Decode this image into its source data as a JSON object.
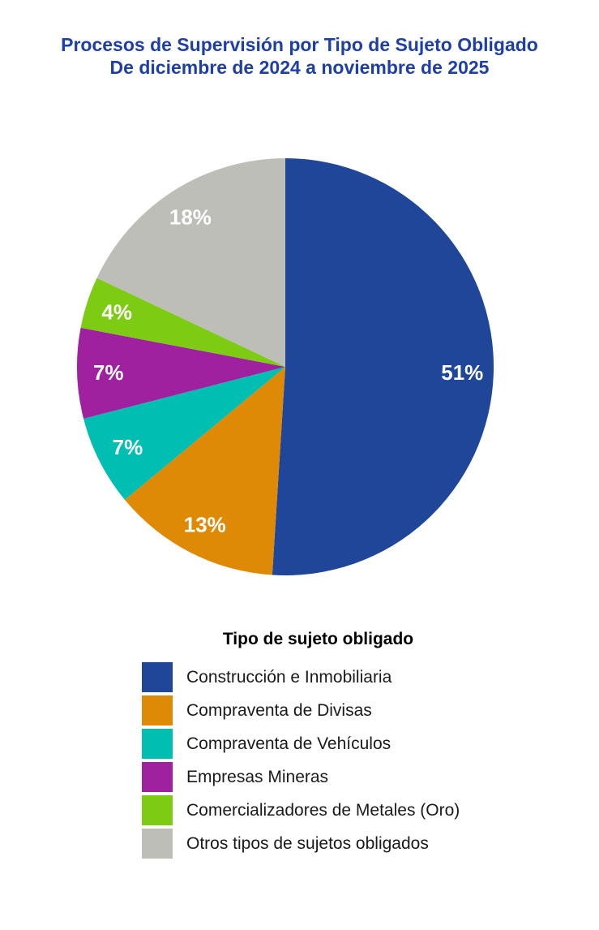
{
  "chart_data": {
    "type": "pie",
    "title": "Procesos de Supervisión por Tipo de Sujeto Obligado",
    "subtitle": "De diciembre de 2024 a noviembre de 2025",
    "title_color": "#1E3EA8",
    "legend_title": "Tipo de sujeto obligado",
    "legend_position": "bottom",
    "start_angle_deg": 0,
    "direction": "clockwise",
    "slice_label_color": "#FFFFFF",
    "slices": [
      {
        "label": "Construcción e Inmobiliaria",
        "value": 51,
        "pct_label": "51%",
        "color": "#1F4699"
      },
      {
        "label": "Compraventa de Divisas",
        "value": 13,
        "pct_label": "13%",
        "color": "#DE8A06"
      },
      {
        "label": "Compraventa de Vehículos",
        "value": 7,
        "pct_label": "7%",
        "color": "#00BFB2"
      },
      {
        "label": "Empresas Mineras",
        "value": 7,
        "pct_label": "7%",
        "color": "#A021A0"
      },
      {
        "label": "Comercializadores de Metales (Oro)",
        "value": 4,
        "pct_label": "4%",
        "color": "#7DCB12"
      },
      {
        "label": "Otros tipos de sujetos obligados",
        "value": 18,
        "pct_label": "18%",
        "color": "#BEBEB9"
      }
    ]
  }
}
